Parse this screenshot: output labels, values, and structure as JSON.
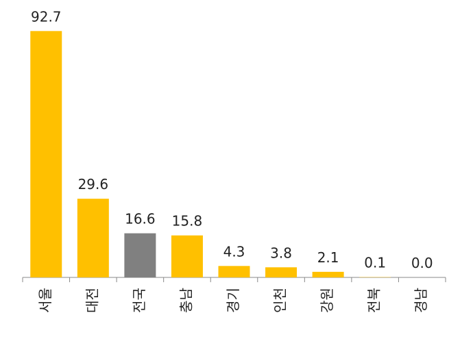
{
  "chart_data": {
    "type": "bar",
    "categories": [
      "서울",
      "대전",
      "전국",
      "충남",
      "경기",
      "인천",
      "강원",
      "전북",
      "경남"
    ],
    "values": [
      92.7,
      29.6,
      16.6,
      15.8,
      4.3,
      3.8,
      2.1,
      0.1,
      0
    ],
    "value_labels": [
      "92.7",
      "29.6",
      "16.6",
      "15.8",
      "4.3",
      "3.8",
      "2.1",
      "0.1",
      "0.0"
    ],
    "colors": [
      "#ffc000",
      "#ffc000",
      "#808080",
      "#ffc000",
      "#ffc000",
      "#ffc000",
      "#ffc000",
      "#ffc000",
      "#ffc000"
    ],
    "ylim": [
      0,
      100
    ]
  }
}
